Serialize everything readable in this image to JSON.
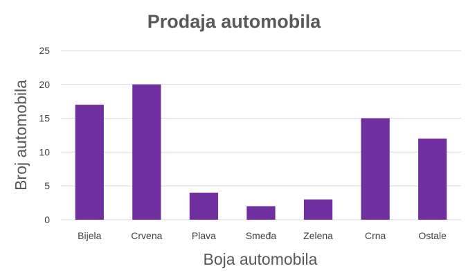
{
  "chart_data": {
    "type": "bar",
    "title": "Prodaja automobila",
    "xlabel": "Boja automobila",
    "ylabel": "Broj automobila",
    "categories": [
      "Bijela",
      "Crvena",
      "Plava",
      "Smeđa",
      "Zelena",
      "Crna",
      "Ostale"
    ],
    "values": [
      17,
      20,
      4,
      2,
      3,
      15,
      12
    ],
    "ylim": [
      0,
      25
    ],
    "yticks": [
      "0",
      "5",
      "10",
      "15",
      "20",
      "25"
    ],
    "grid": true,
    "legend": "none",
    "bar_color": "#7030a0"
  }
}
